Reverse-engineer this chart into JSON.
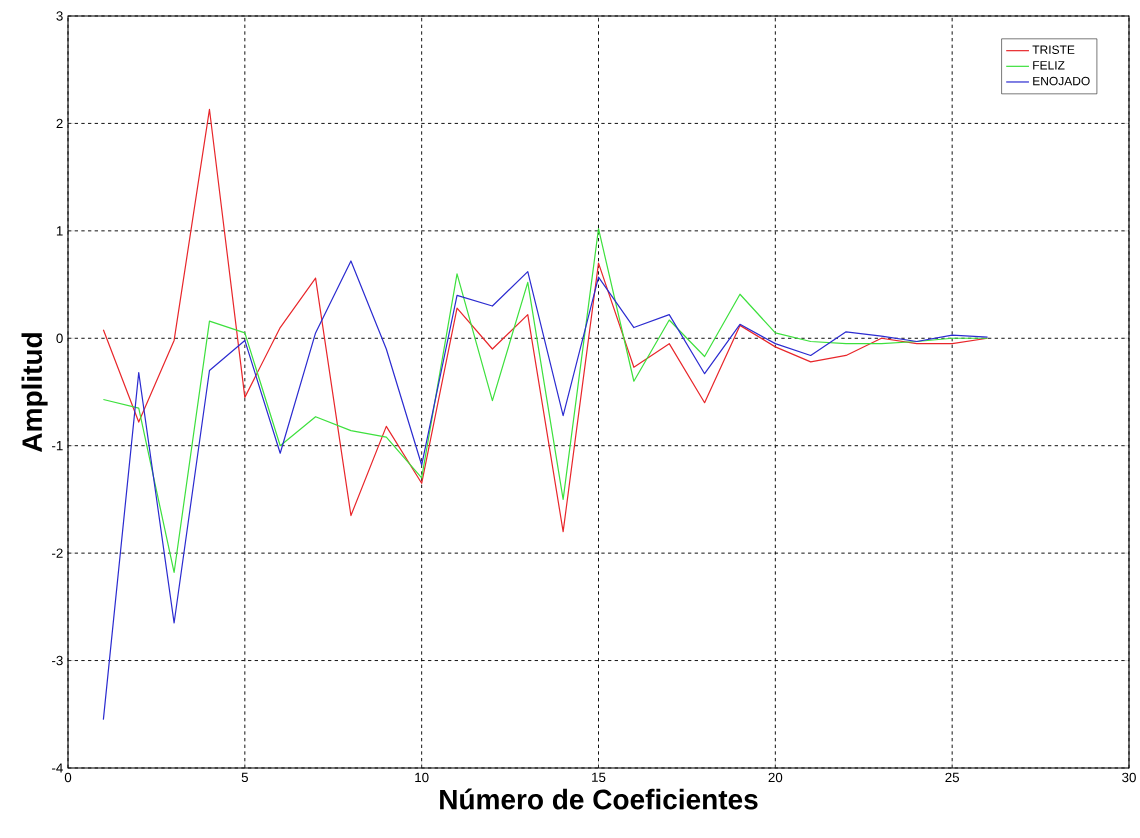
{
  "chart_data": {
    "type": "line",
    "xlabel": "Número de Coeficientes",
    "ylabel": "Amplitud",
    "x": [
      1,
      2,
      3,
      4,
      5,
      6,
      7,
      8,
      9,
      10,
      11,
      12,
      13,
      14,
      15,
      16,
      17,
      18,
      19,
      20,
      21,
      22,
      23,
      24,
      25,
      26
    ],
    "series": [
      {
        "name": "TRISTE",
        "color": "#e8262a",
        "values": [
          0.08,
          -0.78,
          -0.02,
          2.13,
          -0.55,
          0.1,
          0.56,
          -1.65,
          -0.82,
          -1.35,
          0.28,
          -0.1,
          0.22,
          -1.8,
          0.7,
          -0.27,
          -0.05,
          -0.6,
          0.12,
          -0.08,
          -0.22,
          -0.16,
          0.0,
          -0.05,
          -0.05,
          0.0
        ]
      },
      {
        "name": "FELIZ",
        "color": "#3de03d",
        "values": [
          -0.57,
          -0.65,
          -2.18,
          0.16,
          0.05,
          -1.0,
          -0.73,
          -0.86,
          -0.92,
          -1.3,
          0.6,
          -0.58,
          0.52,
          -1.5,
          1.02,
          -0.4,
          0.17,
          -0.17,
          0.41,
          0.05,
          -0.03,
          -0.05,
          -0.05,
          -0.03,
          0.0,
          0.0
        ]
      },
      {
        "name": "ENOJADO",
        "color": "#2b2bd0",
        "values": [
          -3.55,
          -0.32,
          -2.65,
          -0.3,
          -0.02,
          -1.07,
          0.05,
          0.72,
          -0.1,
          -1.18,
          0.4,
          0.3,
          0.62,
          -0.72,
          0.57,
          0.1,
          0.22,
          -0.33,
          0.13,
          -0.05,
          -0.16,
          0.06,
          0.02,
          -0.03,
          0.03,
          0.01
        ]
      }
    ],
    "xlim": [
      0,
      30
    ],
    "xticks": [
      0,
      5,
      10,
      15,
      20,
      25,
      30
    ],
    "ylim": [
      -4,
      3
    ],
    "yticks": [
      -4,
      -3,
      -2,
      -1,
      0,
      1,
      2,
      3
    ],
    "grid": true,
    "legend": "top right",
    "line_style": "solid",
    "marker": "none"
  }
}
